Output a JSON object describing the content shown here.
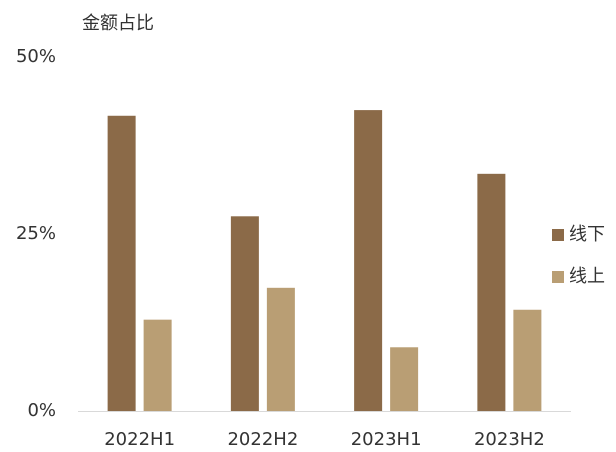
{
  "chart_data": {
    "type": "bar",
    "ylabel": "金额占比",
    "categories": [
      "2022H1",
      "2022H2",
      "2023H1",
      "2023H2"
    ],
    "series": [
      {
        "name": "线下",
        "color": "#8b6a48",
        "values": [
          41.7,
          27.5,
          42.5,
          33.5
        ]
      },
      {
        "name": "线上",
        "color": "#b99e74",
        "values": [
          12.9,
          17.4,
          9.0,
          14.3
        ]
      }
    ],
    "ylim": [
      0,
      50
    ],
    "yticks": [
      {
        "value": 0,
        "label": "0%"
      },
      {
        "value": 25,
        "label": "25%"
      },
      {
        "value": 50,
        "label": "50%"
      }
    ],
    "grid": false,
    "legend": "right"
  }
}
